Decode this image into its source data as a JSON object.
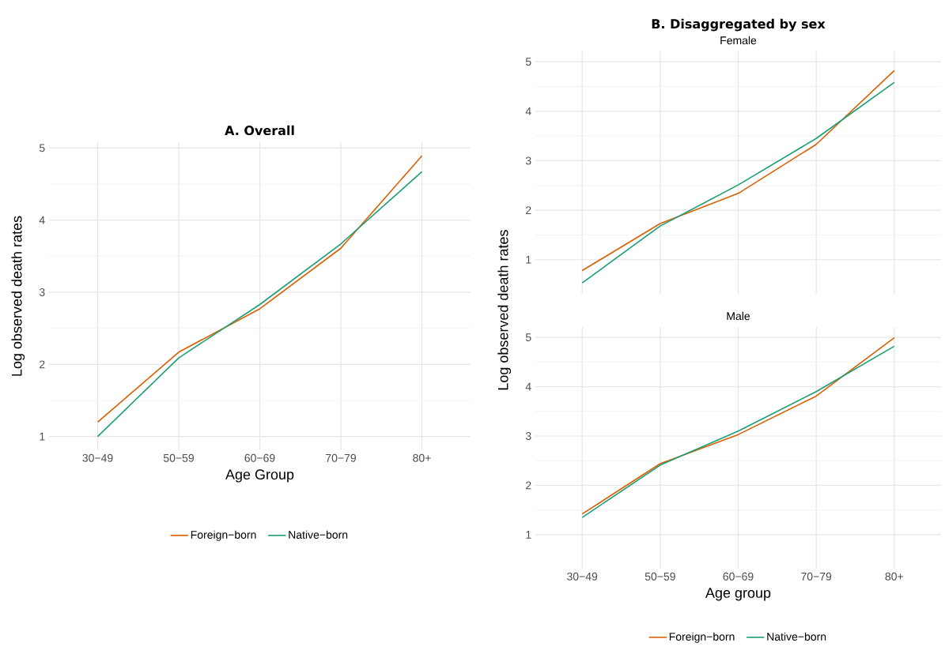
{
  "chart_data": [
    {
      "type": "line",
      "title": "B. Disaggregated by sex",
      "subtitle": "Female",
      "categories": [
        null,
        null,
        null,
        null,
        null
      ],
      "ylim": [
        0.31,
        5.21
      ],
      "yticks": [
        1,
        2,
        3,
        4,
        5
      ],
      "grid": true,
      "tick_labels": "y",
      "series": [
        {
          "color": "#d95f02",
          "values": [
            0.78,
            1.73,
            2.34,
            3.33,
            4.82
          ]
        },
        {
          "color": "#1b9e77",
          "values": [
            0.53,
            1.68,
            2.51,
            3.45,
            4.58
          ]
        }
      ]
    },
    {
      "type": "line",
      "title": "A. Overall",
      "xlabel": "Age Group",
      "ylabel": "Log observed death rates",
      "categories": [
        "30−49",
        "50−59",
        "60−69",
        "70−79",
        "80+"
      ],
      "ylim": [
        0.81,
        5.08
      ],
      "yticks": [
        1,
        2,
        3,
        4,
        5
      ],
      "grid": true,
      "legend": "bottom",
      "series": [
        {
          "name": "Foreign−born",
          "color": "#d95f02",
          "values": [
            1.2,
            2.17,
            2.77,
            3.61,
            4.89
          ]
        },
        {
          "name": "Native−born",
          "color": "#1b9e77",
          "values": [
            1.0,
            2.09,
            2.83,
            3.67,
            4.67
          ]
        }
      ]
    },
    {
      "type": "line",
      "subtitle": "Male",
      "xlabel": "Age group",
      "ylabel": "Log observed death rates",
      "categories": [
        "30−49",
        "50−59",
        "60−69",
        "70−79",
        "80+"
      ],
      "ylim": [
        0.31,
        5.21
      ],
      "yticks": [
        1,
        2,
        3,
        4,
        5
      ],
      "grid": true,
      "legend": "bottom",
      "series": [
        {
          "name": "Foreign−born",
          "color": "#d95f02",
          "values": [
            1.42,
            2.44,
            3.03,
            3.81,
            4.99
          ]
        },
        {
          "name": "Native−born",
          "color": "#1b9e77",
          "values": [
            1.35,
            2.41,
            3.1,
            3.9,
            4.82
          ]
        }
      ]
    }
  ]
}
